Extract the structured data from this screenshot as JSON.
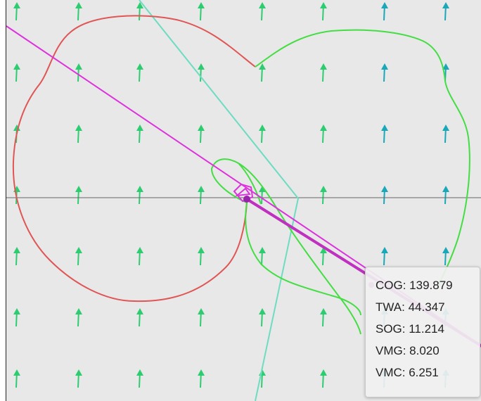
{
  "readout": {
    "cog": "COG: 139.879",
    "twa": "TWA: 44.347",
    "sog": "SOG: 11.214",
    "vmg": "VMG: 8.020",
    "vmc": "VMC: 6.251"
  },
  "colors": {
    "background": "#e8e8e8",
    "wind_arrow_green": "#2ecc71",
    "wind_arrow_teal": "#1aa8b8",
    "polar_curve_red": "#e05555",
    "polar_curve_green": "#44dd44",
    "course_line_magenta": "#dd33dd",
    "laylines_cyan": "#6edcc0",
    "axis_line": "#666666"
  },
  "icons": {
    "wind_arrow": "up-arrow-icon",
    "boat_marker": "boat-marker-icon"
  }
}
